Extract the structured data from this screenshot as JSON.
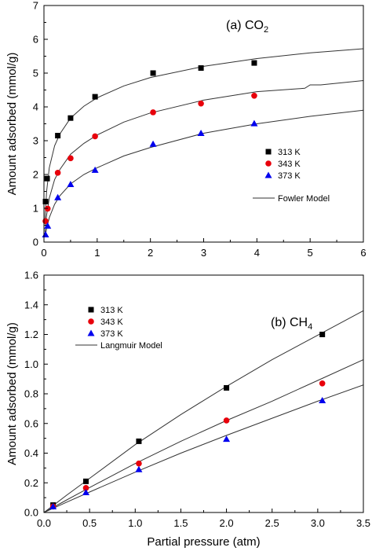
{
  "chart_data": [
    {
      "type": "scatter",
      "panel_label": "(a) CO",
      "panel_label_sub": "2",
      "xlabel": "",
      "ylabel": "Amount adsorbed (mmol/g)",
      "xlim": [
        0,
        6
      ],
      "ylim": [
        0,
        7
      ],
      "x_ticks": [
        0,
        1,
        2,
        3,
        4,
        5,
        6
      ],
      "y_ticks": [
        0,
        1,
        2,
        3,
        4,
        5,
        6,
        7
      ],
      "legend_position": "right",
      "series": [
        {
          "name": "313 K",
          "marker": "square",
          "color": "#000000",
          "x": [
            0.03,
            0.06,
            0.26,
            0.5,
            0.96,
            2.05,
            2.95,
            3.95
          ],
          "y": [
            1.2,
            1.88,
            3.15,
            3.67,
            4.3,
            5.0,
            5.15,
            5.3
          ]
        },
        {
          "name": "343 K",
          "marker": "circle",
          "color": "#e8000b",
          "x": [
            0.03,
            0.07,
            0.26,
            0.5,
            0.96,
            2.05,
            2.95,
            3.95
          ],
          "y": [
            0.62,
            0.99,
            2.05,
            2.48,
            3.13,
            3.84,
            4.1,
            4.33
          ]
        },
        {
          "name": "373 K",
          "marker": "triangle",
          "color": "#0000ee",
          "x": [
            0.03,
            0.07,
            0.26,
            0.5,
            0.96,
            2.05,
            2.95,
            3.95
          ],
          "y": [
            0.22,
            0.48,
            1.32,
            1.71,
            2.13,
            2.9,
            3.22,
            3.51
          ]
        }
      ],
      "model": {
        "name": "Fowler Model",
        "curves": [
          {
            "x": [
              0.02,
              0.05,
              0.1,
              0.2,
              0.3,
              0.5,
              0.75,
              1.0,
              1.5,
              2.0,
              3.0,
              4.0,
              5.0,
              6.0
            ],
            "y": [
              0.7,
              1.5,
              2.2,
              2.85,
              3.2,
              3.67,
              4.02,
              4.27,
              4.62,
              4.87,
              5.2,
              5.43,
              5.6,
              5.72
            ]
          },
          {
            "x": [
              0.02,
              0.05,
              0.1,
              0.2,
              0.3,
              0.5,
              0.75,
              1.0,
              1.5,
              2.0,
              3.0,
              4.0,
              4.9,
              5.0,
              5.2,
              6.0
            ],
            "y": [
              0.3,
              0.8,
              1.3,
              1.85,
              2.15,
              2.6,
              2.92,
              3.17,
              3.55,
              3.82,
              4.2,
              4.45,
              4.55,
              4.65,
              4.65,
              4.78
            ]
          },
          {
            "x": [
              0.02,
              0.05,
              0.1,
              0.2,
              0.3,
              0.5,
              0.75,
              1.0,
              1.5,
              2.0,
              3.0,
              4.0,
              5.0,
              6.0
            ],
            "y": [
              0.15,
              0.4,
              0.72,
              1.12,
              1.37,
              1.72,
              2.0,
              2.2,
              2.55,
              2.8,
              3.22,
              3.5,
              3.72,
              3.9
            ]
          }
        ]
      }
    },
    {
      "type": "scatter",
      "panel_label": "(b) CH",
      "panel_label_sub": "4",
      "xlabel": "Partial pressure (atm)",
      "ylabel": "Amount adsorbed (mmol/g)",
      "xlim": [
        0,
        3.5
      ],
      "ylim": [
        0,
        1.6
      ],
      "x_ticks": [
        "0.0",
        "0.5",
        "1.0",
        "1.5",
        "2.0",
        "2.5",
        "3.0",
        "3.5"
      ],
      "y_ticks": [
        "0.0",
        "0.2",
        "0.4",
        "0.6",
        "0.8",
        "1.0",
        "1.2",
        "1.4",
        "1.6"
      ],
      "legend_position": "top-left",
      "series": [
        {
          "name": "313 K",
          "marker": "square",
          "color": "#000000",
          "x": [
            0.1,
            0.46,
            1.04,
            2.0,
            3.05
          ],
          "y": [
            0.05,
            0.21,
            0.48,
            0.84,
            1.2
          ]
        },
        {
          "name": "343 K",
          "marker": "circle",
          "color": "#e8000b",
          "x": [
            0.1,
            0.46,
            1.04,
            2.0,
            3.05
          ],
          "y": [
            0.04,
            0.165,
            0.33,
            0.62,
            0.87
          ]
        },
        {
          "name": "373 K",
          "marker": "triangle",
          "color": "#0000ee",
          "x": [
            0.1,
            0.46,
            1.04,
            2.0,
            3.05
          ],
          "y": [
            0.04,
            0.135,
            0.29,
            0.495,
            0.755
          ]
        }
      ],
      "model": {
        "name": "Langmuir Model",
        "curves": [
          {
            "x": [
              0,
              0.25,
              0.5,
              1.0,
              1.5,
              2.0,
              2.5,
              3.0,
              3.5
            ],
            "y": [
              0,
              0.117,
              0.23,
              0.457,
              0.66,
              0.85,
              1.03,
              1.195,
              1.36
            ]
          },
          {
            "x": [
              0,
              0.25,
              0.5,
              1.0,
              1.5,
              2.0,
              2.5,
              3.0,
              3.5
            ],
            "y": [
              0,
              0.085,
              0.168,
              0.33,
              0.48,
              0.62,
              0.75,
              0.89,
              1.03
            ]
          },
          {
            "x": [
              0,
              0.25,
              0.5,
              1.0,
              1.5,
              2.0,
              2.5,
              3.0,
              3.5
            ],
            "y": [
              0,
              0.07,
              0.138,
              0.272,
              0.4,
              0.52,
              0.635,
              0.75,
              0.86
            ]
          }
        ]
      }
    }
  ]
}
